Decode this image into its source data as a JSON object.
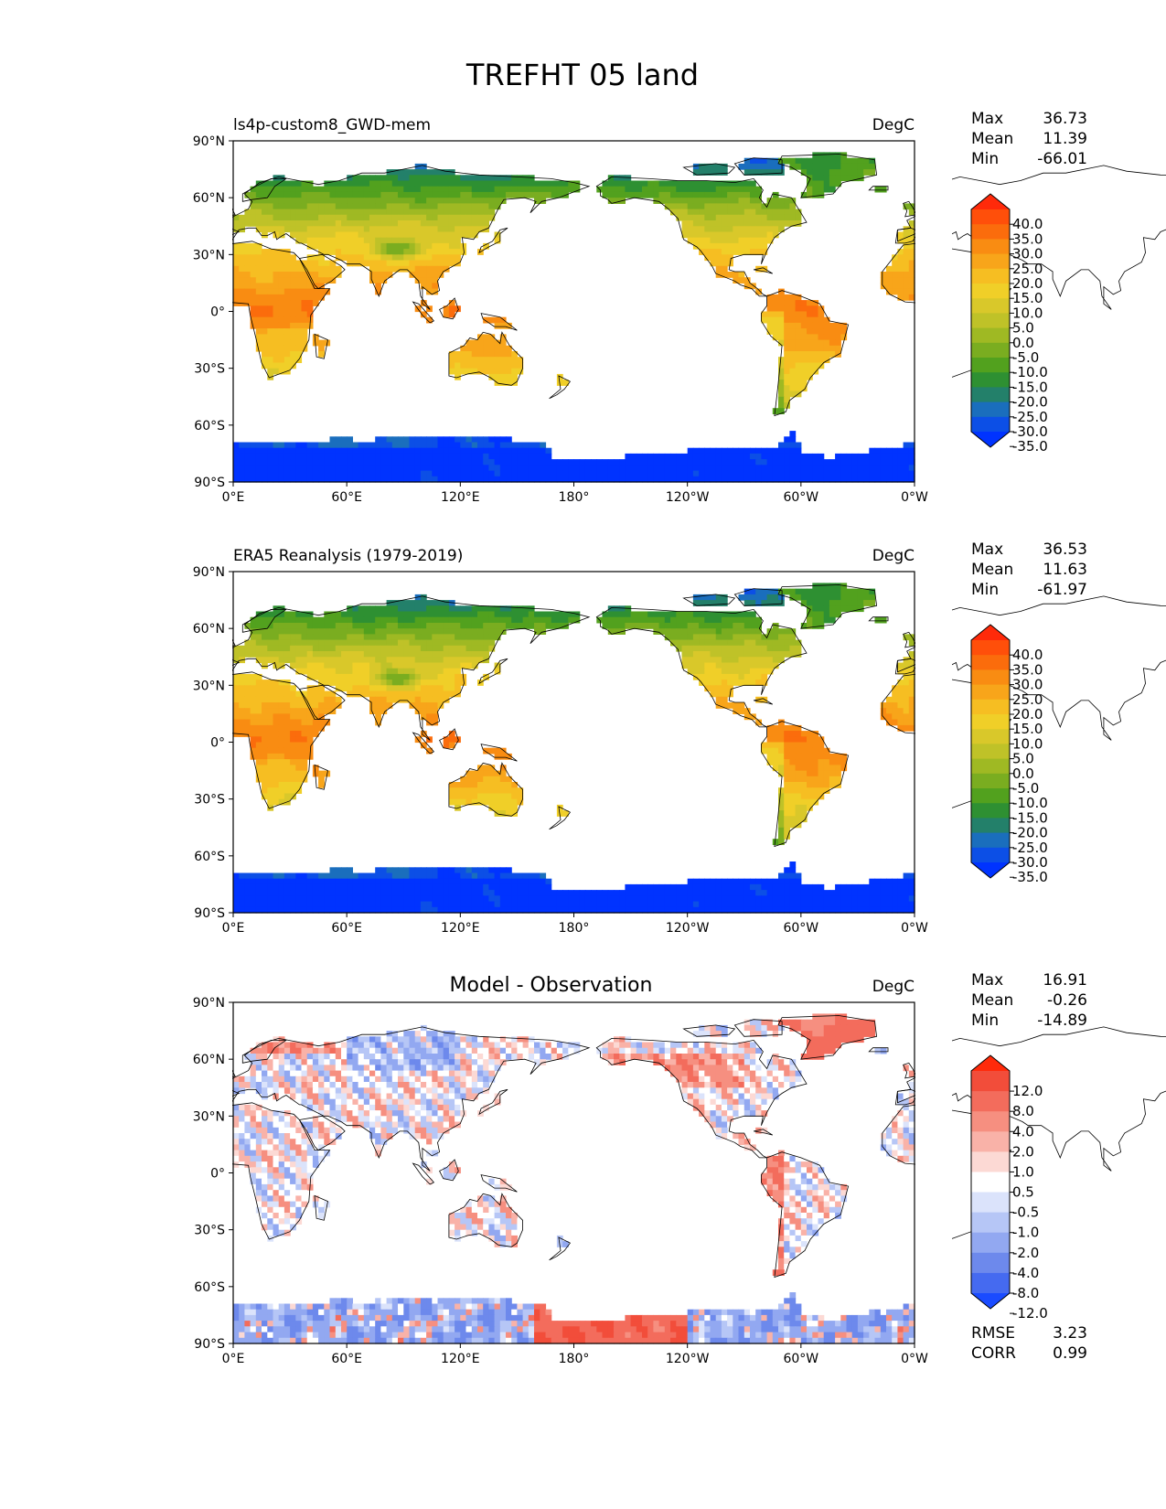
{
  "figure_title": "TREFHT 05 land",
  "chart_data": [
    {
      "type": "heatmap",
      "panel_title": "ls4p-custom8_GWD-mem",
      "units": "DegC",
      "x_ticks": [
        "0°E",
        "60°E",
        "120°E",
        "180°",
        "120°W",
        "60°W",
        "0°W"
      ],
      "y_ticks": [
        "90°N",
        "60°N",
        "30°N",
        "0°",
        "30°S",
        "60°S",
        "90°S"
      ],
      "xlim": [
        0,
        360
      ],
      "ylim": [
        -90,
        90
      ],
      "stats": [
        {
          "label": "Max",
          "value": "36.73"
        },
        {
          "label": "Mean",
          "value": "11.39"
        },
        {
          "label": "Min",
          "value": "-66.01"
        }
      ],
      "colorbar_levels": [
        "40.0",
        "35.0",
        "30.0",
        "25.0",
        "20.0",
        "15.0",
        "10.0",
        "5.0",
        "0.0",
        "-5.0",
        "-10.0",
        "-15.0",
        "-20.0",
        "-25.0",
        "-30.0",
        "-35.0"
      ],
      "colorbar_colors": [
        "#ff2a0a",
        "#ff4f0a",
        "#fb6c0c",
        "#f98c12",
        "#f8a51a",
        "#f6be22",
        "#f0cf28",
        "#d9c82a",
        "#bfc228",
        "#9fb923",
        "#7aad20",
        "#52a11e",
        "#2e9032",
        "#23806a",
        "#1a6ebd",
        "#0c4fe6",
        "#0033ff"
      ],
      "extend": "both",
      "color_scheme": "temperature"
    },
    {
      "type": "heatmap",
      "panel_title": "ERA5 Reanalysis (1979-2019)",
      "units": "DegC",
      "x_ticks": [
        "0°E",
        "60°E",
        "120°E",
        "180°",
        "120°W",
        "60°W",
        "0°W"
      ],
      "y_ticks": [
        "90°N",
        "60°N",
        "30°N",
        "0°",
        "30°S",
        "60°S",
        "90°S"
      ],
      "xlim": [
        0,
        360
      ],
      "ylim": [
        -90,
        90
      ],
      "stats": [
        {
          "label": "Max",
          "value": "36.53"
        },
        {
          "label": "Mean",
          "value": "11.63"
        },
        {
          "label": "Min",
          "value": "-61.97"
        }
      ],
      "colorbar_levels": [
        "40.0",
        "35.0",
        "30.0",
        "25.0",
        "20.0",
        "15.0",
        "10.0",
        "5.0",
        "0.0",
        "-5.0",
        "-10.0",
        "-15.0",
        "-20.0",
        "-25.0",
        "-30.0",
        "-35.0"
      ],
      "colorbar_colors": [
        "#ff2a0a",
        "#ff4f0a",
        "#fb6c0c",
        "#f98c12",
        "#f8a51a",
        "#f6be22",
        "#f0cf28",
        "#d9c82a",
        "#bfc228",
        "#9fb923",
        "#7aad20",
        "#52a11e",
        "#2e9032",
        "#23806a",
        "#1a6ebd",
        "#0c4fe6",
        "#0033ff"
      ],
      "extend": "both",
      "color_scheme": "temperature"
    },
    {
      "type": "heatmap",
      "panel_title": "Model - Observation",
      "units": "DegC",
      "x_ticks": [
        "0°E",
        "60°E",
        "120°E",
        "180°",
        "120°W",
        "60°W",
        "0°W"
      ],
      "y_ticks": [
        "90°N",
        "60°N",
        "30°N",
        "0°",
        "30°S",
        "60°S",
        "90°S"
      ],
      "xlim": [
        0,
        360
      ],
      "ylim": [
        -90,
        90
      ],
      "stats": [
        {
          "label": "Max",
          "value": "16.91"
        },
        {
          "label": "Mean",
          "value": "-0.26"
        },
        {
          "label": "Min",
          "value": "-14.89"
        }
      ],
      "colorbar_levels": [
        "12.0",
        "8.0",
        "4.0",
        "2.0",
        "1.0",
        "0.5",
        "-0.5",
        "-1.0",
        "-2.0",
        "-4.0",
        "-8.0",
        "-12.0"
      ],
      "colorbar_colors": [
        "#ff2a0a",
        "#f24d3a",
        "#f36c5c",
        "#f68f80",
        "#f9b2a8",
        "#fcd9d4",
        "#ffffff",
        "#dbe3fb",
        "#b6c6f6",
        "#92a8f1",
        "#6d89ec",
        "#456af0",
        "#1a4bff"
      ],
      "extend": "both",
      "color_scheme": "diff",
      "bottom_stats": [
        {
          "label": "RMSE",
          "value": "3.23"
        },
        {
          "label": "CORR",
          "value": "0.99"
        }
      ]
    }
  ]
}
